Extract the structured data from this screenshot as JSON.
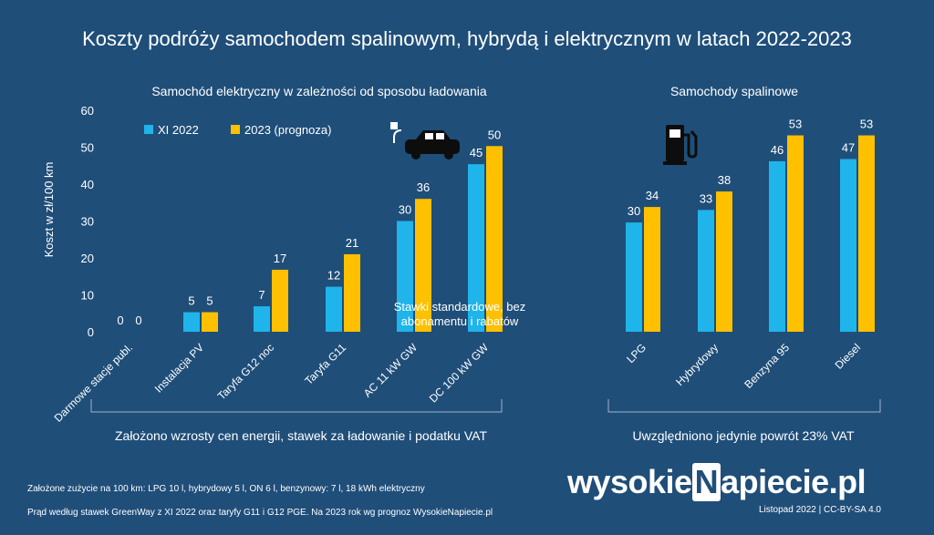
{
  "title": "Koszty podróży samochodem spalinowym, hybrydą i elektrycznym w latach 2022-2023",
  "subtitle_ev": "Samochód elektryczny w zależności od sposobu ładowania",
  "subtitle_ice": "Samochody spalinowe",
  "annotation": "Stawki standardowe, bez abonamentu i rabatów",
  "note_ev": "Założono wzrosty cen energii, stawek za ładowanie i podatku VAT",
  "note_ice": "Uwzględniono jedynie powrót 23% VAT",
  "footnote1": "Założone zużycie na 100 km: LPG 10 l, hybrydowy 5 l,  ON 6 l, benzynowy: 7 l, 18 kWh elektryczny",
  "footnote2": "Prąd według stawek GreenWay z XI 2022 oraz taryfy G11 i G12 PGE. Na 2023 rok wg prognoz WysokieNapiecie.pl",
  "logo": "wysokieNapiecie.pl",
  "credit": "Listopad  2022  |  CC-BY-SA 4.0",
  "colors": {
    "series1": "#1fb4ea",
    "series2": "#ffc000",
    "background": "#1f4e79"
  },
  "chart_data": {
    "type": "bar",
    "ylabel": "Koszt w zł/100 km",
    "ylim": [
      0,
      60
    ],
    "yticks": [
      "0",
      "10",
      "20",
      "30",
      "40",
      "50",
      "60"
    ],
    "categories": [
      "Darmowe stacje publ.",
      "Instalacja PV",
      "Taryfa G12 noc",
      "Taryfa G11",
      "AC 11 kW GW",
      "DC 100 kW GW",
      "LPG",
      "Hybrydowy",
      "Benzyna 95",
      "Diesel"
    ],
    "series": [
      {
        "name": "XI 2022",
        "values": [
          0,
          5.3,
          6.9,
          12.2,
          30,
          45.4,
          29.6,
          33,
          46.2,
          46.8
        ],
        "labels": [
          "0",
          "5",
          "7",
          "12",
          "30",
          "45",
          "30",
          "33",
          "46",
          "47"
        ]
      },
      {
        "name": "2023 (prognoza)",
        "values": [
          0,
          5.3,
          16.8,
          21,
          36,
          50.3,
          33.8,
          38,
          53.2,
          53.2
        ],
        "labels": [
          "0",
          "5",
          "17",
          "21",
          "36",
          "50",
          "34",
          "38",
          "53",
          "53"
        ]
      }
    ],
    "legend": "top-left",
    "grid": false
  }
}
